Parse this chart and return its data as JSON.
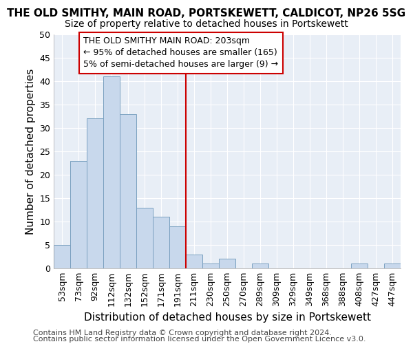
{
  "title": "THE OLD SMITHY, MAIN ROAD, PORTSKEWETT, CALDICOT, NP26 5SG",
  "subtitle": "Size of property relative to detached houses in Portskewett",
  "xlabel": "Distribution of detached houses by size in Portskewett",
  "ylabel": "Number of detached properties",
  "categories": [
    "53sqm",
    "73sqm",
    "92sqm",
    "112sqm",
    "132sqm",
    "152sqm",
    "171sqm",
    "191sqm",
    "211sqm",
    "230sqm",
    "250sqm",
    "270sqm",
    "289sqm",
    "309sqm",
    "329sqm",
    "349sqm",
    "368sqm",
    "388sqm",
    "408sqm",
    "427sqm",
    "447sqm"
  ],
  "values": [
    5,
    23,
    32,
    41,
    33,
    13,
    11,
    9,
    3,
    1,
    2,
    0,
    1,
    0,
    0,
    0,
    0,
    0,
    1,
    0,
    1
  ],
  "bar_color": "#c8d8ec",
  "bar_edge_color": "#7aa0c0",
  "vline_color": "#cc0000",
  "annotation_text": "THE OLD SMITHY MAIN ROAD: 203sqm\n← 95% of detached houses are smaller (165)\n5% of semi-detached houses are larger (9) →",
  "annotation_box_color": "#cc0000",
  "ylim": [
    0,
    50
  ],
  "yticks": [
    0,
    5,
    10,
    15,
    20,
    25,
    30,
    35,
    40,
    45,
    50
  ],
  "footer_line1": "Contains HM Land Registry data © Crown copyright and database right 2024.",
  "footer_line2": "Contains public sector information licensed under the Open Government Licence v3.0.",
  "bg_color": "#ffffff",
  "plot_bg_color": "#e8eef6",
  "grid_color": "#ffffff",
  "title_fontsize": 11,
  "subtitle_fontsize": 10,
  "axis_label_fontsize": 11,
  "tick_fontsize": 9,
  "footer_fontsize": 8,
  "annotation_fontsize": 9
}
